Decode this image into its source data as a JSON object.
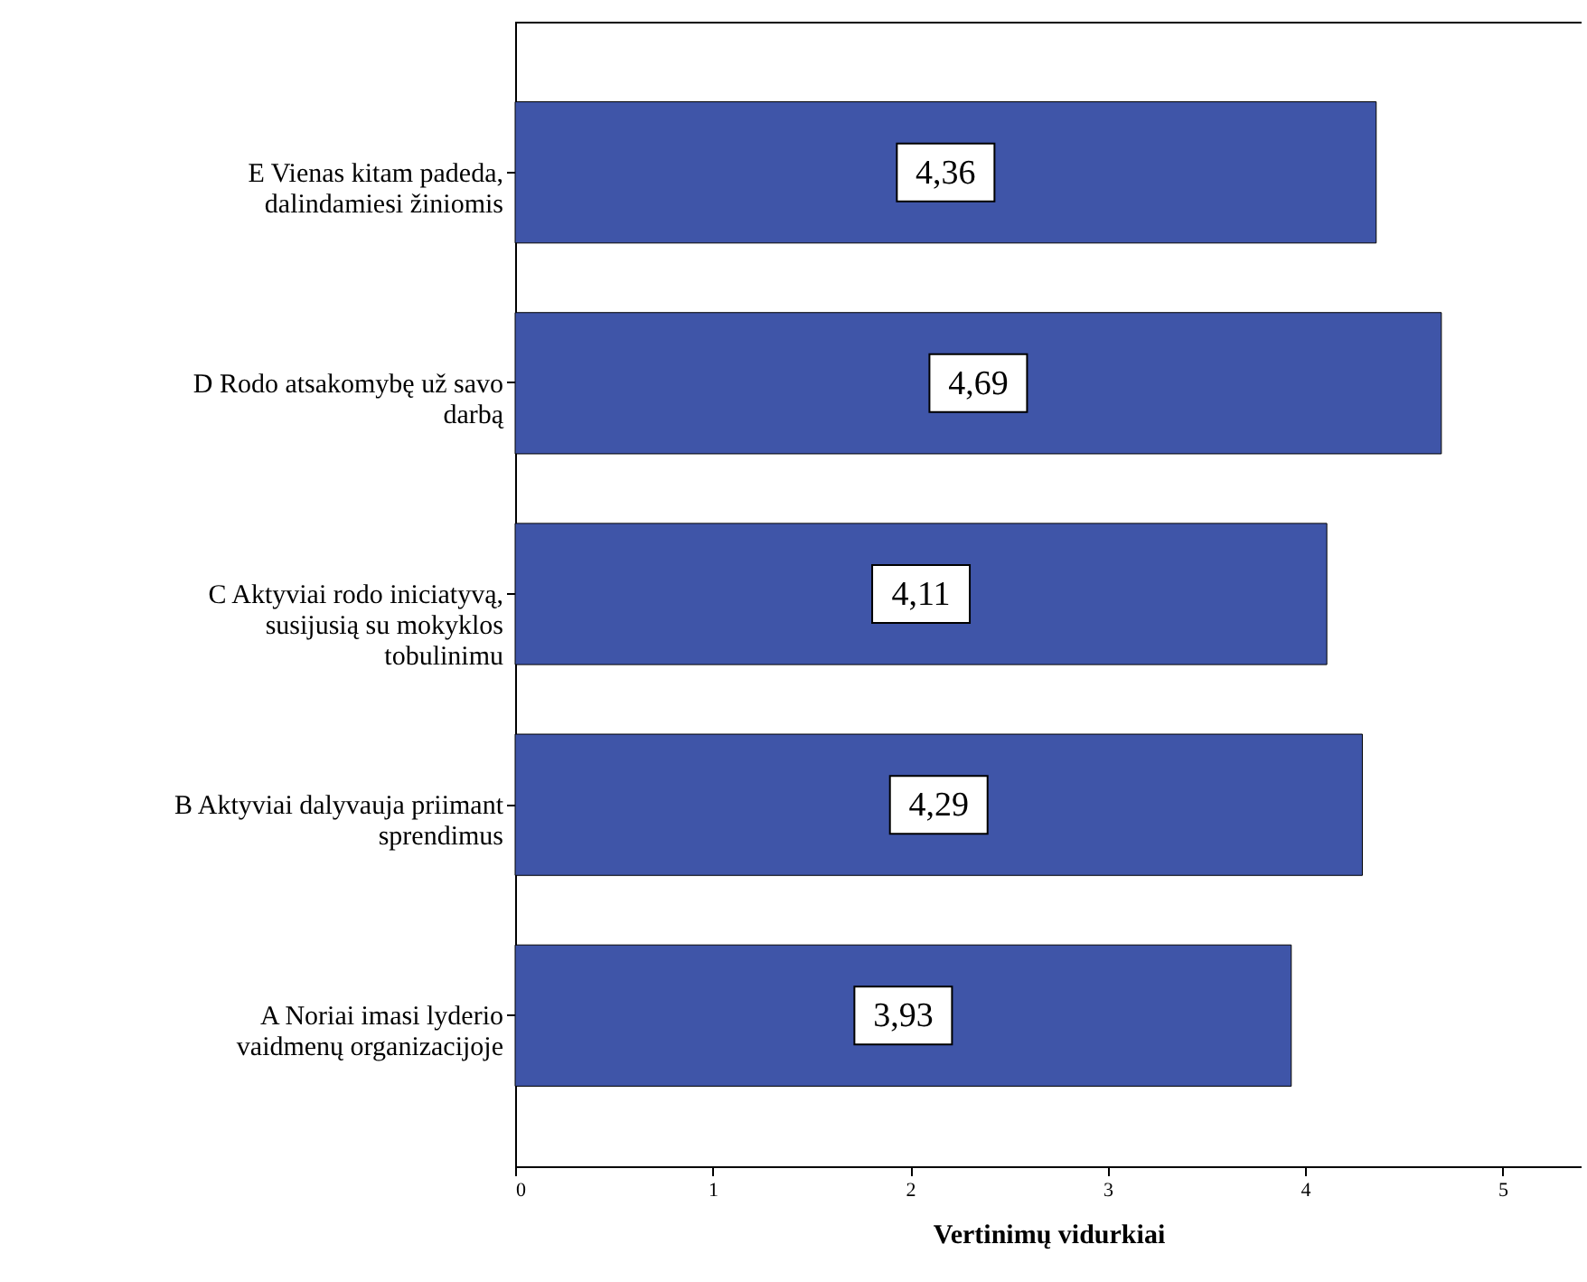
{
  "chart_data": {
    "type": "bar",
    "orientation": "horizontal",
    "categories": [
      "E Vienas kitam padeda,\ndalindamiesi žiniomis",
      "D Rodo atsakomybę už savo\ndarbą",
      "C Aktyviai rodo iniciatyvą,\nsusijusią su mokyklos\ntobulinimu",
      "B Aktyviai dalyvauja priimant\nsprendimus",
      "A Noriai imasi lyderio\nvaidmenų organizacijoje"
    ],
    "values": [
      4.36,
      4.69,
      4.11,
      4.29,
      3.93
    ],
    "color": "#3f55a8",
    "xlabel": "Vertinimų vidurkiai",
    "xlim": [
      0,
      5.4
    ],
    "xticks": [
      0,
      1,
      2,
      3,
      4,
      5
    ],
    "value_labels": [
      "4,36",
      "4,69",
      "4,11",
      "4,29",
      "3,93"
    ],
    "grid": false
  }
}
